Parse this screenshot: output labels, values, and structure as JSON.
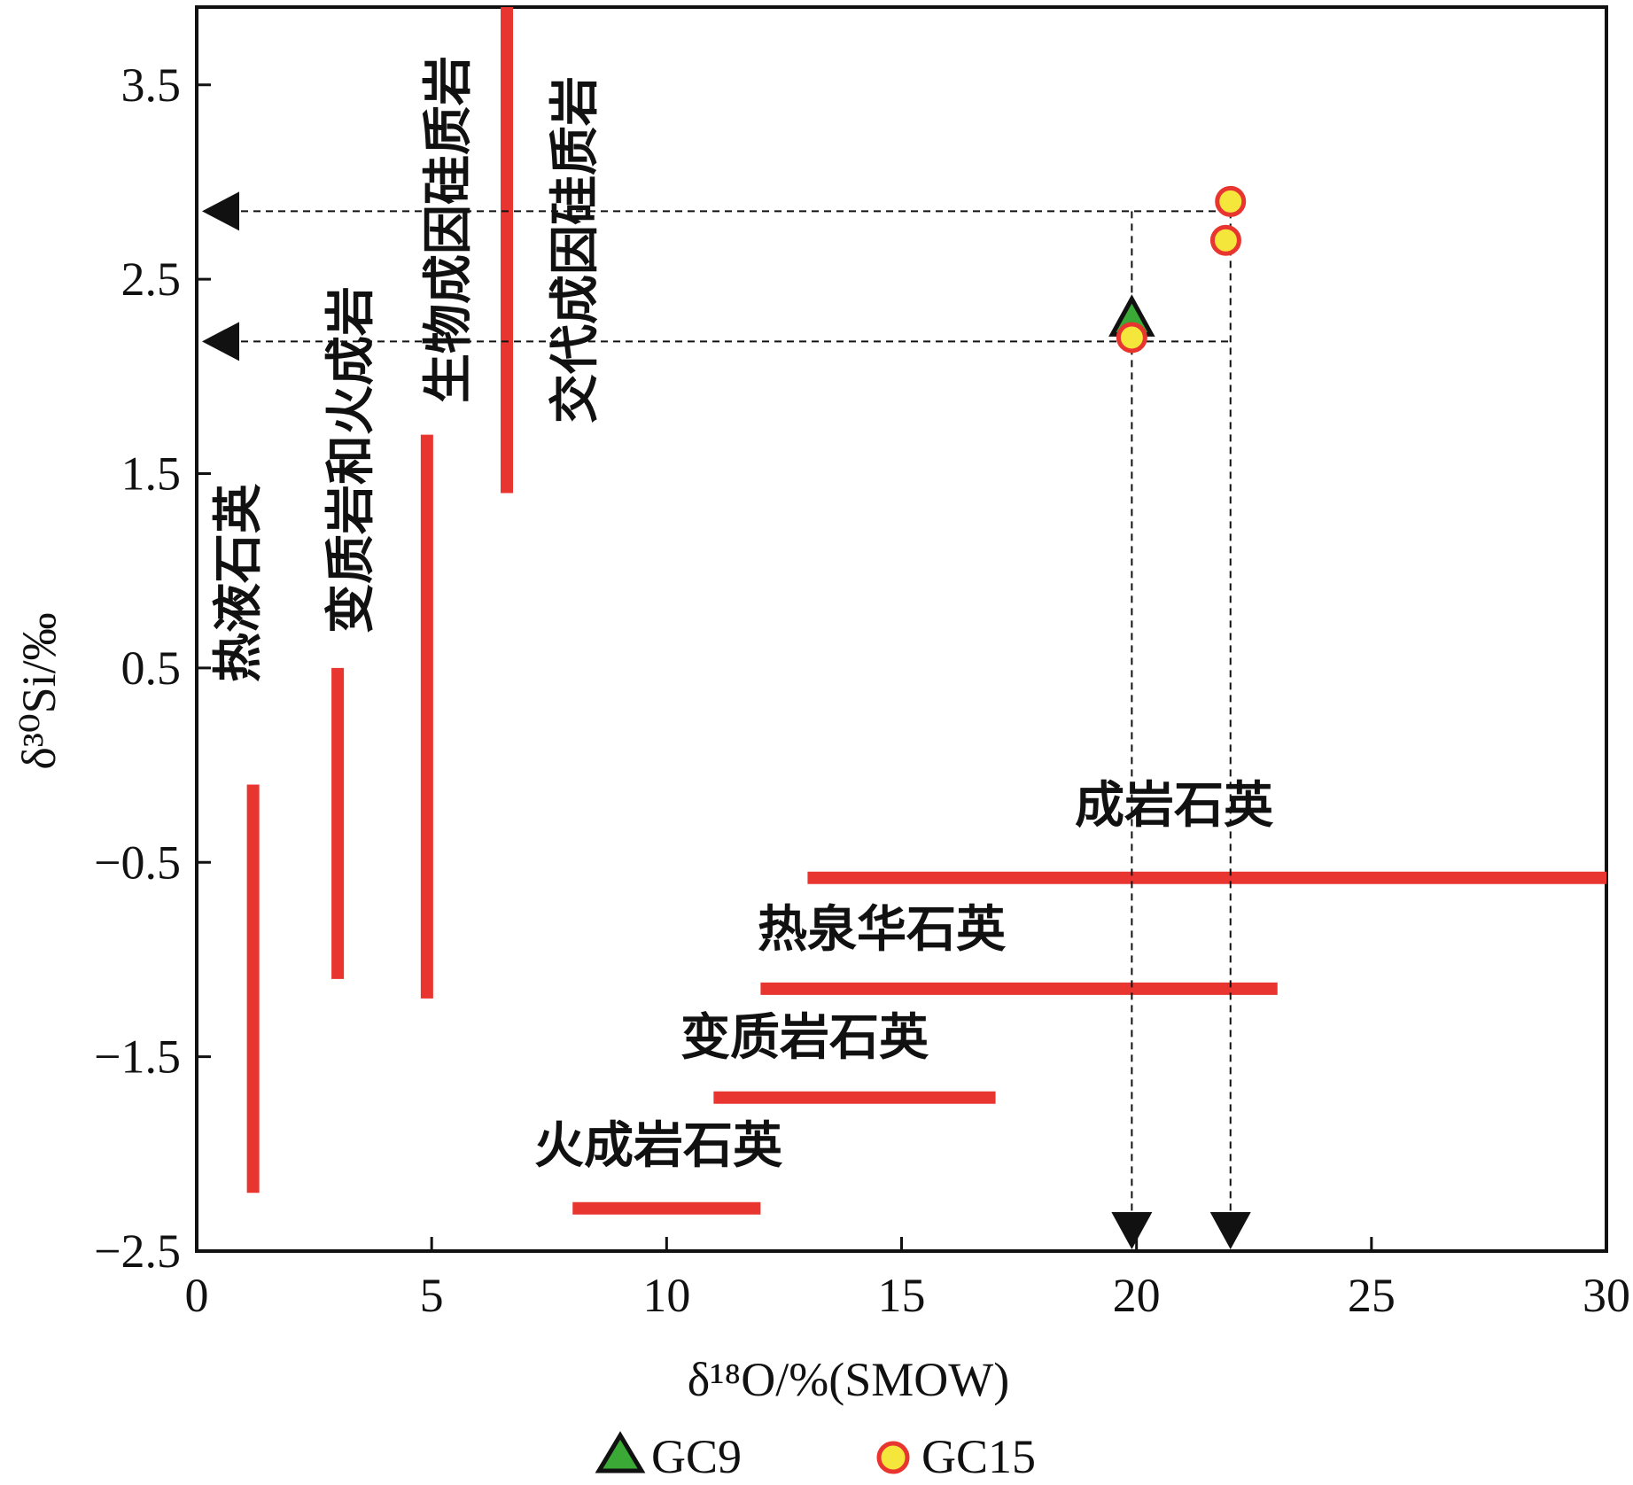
{
  "chart_data": {
    "type": "scatter",
    "xlabel": "δ¹⁸O/%(SMOW)",
    "ylabel": "δ³⁰Si/‰",
    "xlim": [
      0,
      30
    ],
    "ylim": [
      -2.5,
      3.9
    ],
    "x_ticks": [
      "0",
      "5",
      "10",
      "15",
      "20",
      "25",
      "30"
    ],
    "y_ticks": [
      "−2.5",
      "−1.5",
      "−0.5",
      "0.5",
      "1.5",
      "2.5",
      "3.5"
    ],
    "grid": false,
    "legend_position": "bottom",
    "vertical_ranges": [
      {
        "label": "热液石英",
        "x": 1.2,
        "y_range": [
          -2.2,
          -0.1
        ]
      },
      {
        "label": "变质岩和火成岩",
        "x": 3.0,
        "y_range": [
          -1.1,
          0.5
        ]
      },
      {
        "label": "生物成因硅质岩",
        "x": 4.9,
        "y_range": [
          -1.2,
          1.7
        ]
      },
      {
        "label": "交代成因硅质岩",
        "x": 6.6,
        "y_range": [
          1.4,
          3.9
        ]
      }
    ],
    "horizontal_ranges": [
      {
        "label": "成岩石英",
        "y": -0.58,
        "x_range": [
          13,
          30
        ]
      },
      {
        "label": "热泉华石英",
        "y": -1.15,
        "x_range": [
          12,
          23
        ]
      },
      {
        "label": "变质岩石英",
        "y": -1.71,
        "x_range": [
          11,
          17
        ]
      },
      {
        "label": "火成岩石英",
        "y": -2.28,
        "x_range": [
          8,
          12
        ]
      }
    ],
    "series": [
      {
        "name": "GC9",
        "marker": "triangle",
        "color": "#3aa935",
        "points": [
          {
            "x": 19.9,
            "y": 2.28
          }
        ]
      },
      {
        "name": "GC15",
        "marker": "circle",
        "color": "#f5e63c",
        "points": [
          {
            "x": 22.0,
            "y": 2.9
          },
          {
            "x": 21.9,
            "y": 2.7
          },
          {
            "x": 19.9,
            "y": 2.2
          }
        ]
      }
    ],
    "reference_y": [
      2.85,
      2.18
    ],
    "reference_x": [
      19.9,
      22.0
    ],
    "colors": {
      "range": "#e8352f",
      "marker_edge": "#e8352f",
      "axis": "#111111"
    }
  }
}
